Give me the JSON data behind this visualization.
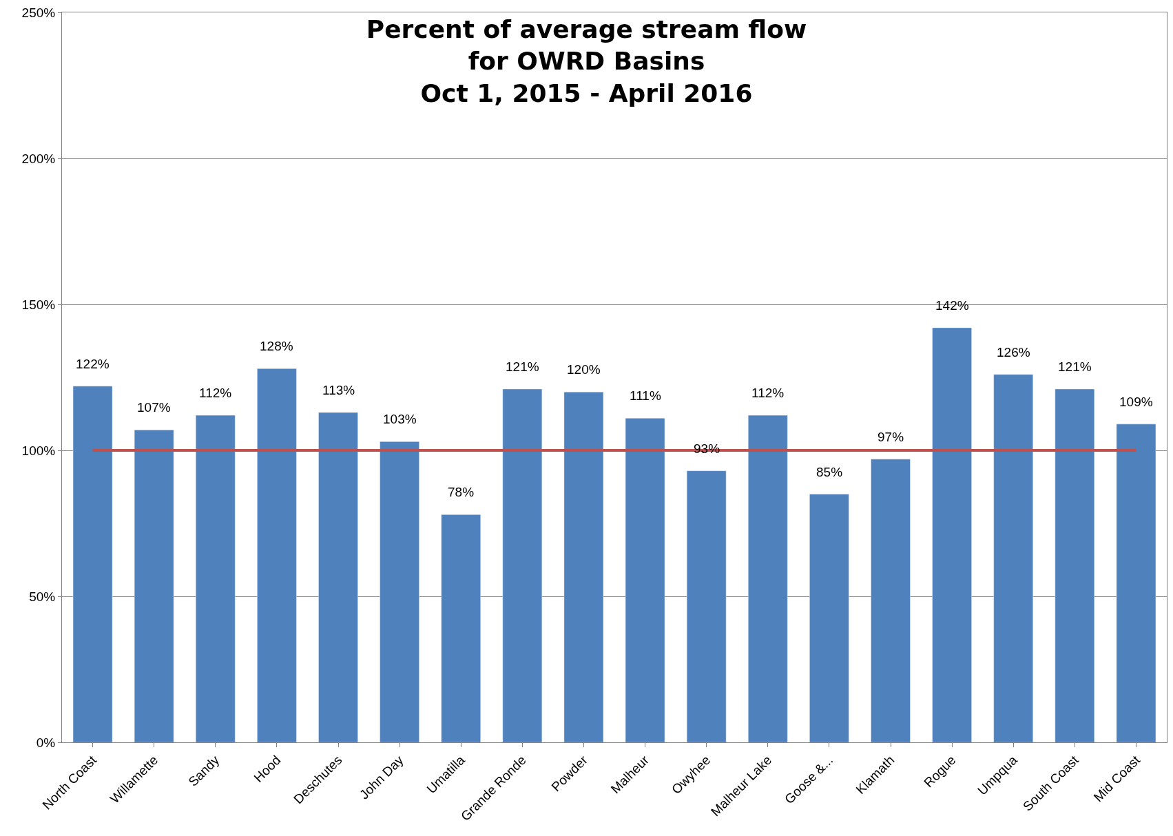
{
  "chart_data": {
    "type": "bar",
    "title": "Percent of average stream flow\nfor OWRD Basins\nOct 1, 2015 - April 2016",
    "categories": [
      "North Coast",
      "Willamette",
      "Sandy",
      "Hood",
      "Deschutes",
      "John Day",
      "Umatilla",
      "Grande Ronde",
      "Powder",
      "Malheur",
      "Owyhee",
      "Malheur Lake",
      "Goose &...",
      "Klamath",
      "Rogue",
      "Umpqua",
      "South Coast",
      "Mid Coast"
    ],
    "values": [
      122,
      107,
      112,
      128,
      113,
      103,
      78,
      121,
      120,
      111,
      93,
      112,
      85,
      97,
      142,
      126,
      121,
      109
    ],
    "value_labels": [
      "122%",
      "107%",
      "112%",
      "128%",
      "113%",
      "103%",
      "78%",
      "121%",
      "120%",
      "111%",
      "93%",
      "112%",
      "85%",
      "97%",
      "142%",
      "126%",
      "121%",
      "109%"
    ],
    "color": "#4f81bd",
    "ylim": [
      0,
      250
    ],
    "yticks": [
      {
        "value": 0,
        "label": "0%"
      },
      {
        "value": 50,
        "label": "50%"
      },
      {
        "value": 100,
        "label": "100%"
      },
      {
        "value": 150,
        "label": "150%"
      },
      {
        "value": 200,
        "label": "200%"
      },
      {
        "value": 250,
        "label": "250%"
      }
    ],
    "ref_lines": [
      {
        "axis": "y",
        "value": 100,
        "color": "#c0504d",
        "line_style": "solid"
      }
    ],
    "grid": "y",
    "legend": false
  }
}
